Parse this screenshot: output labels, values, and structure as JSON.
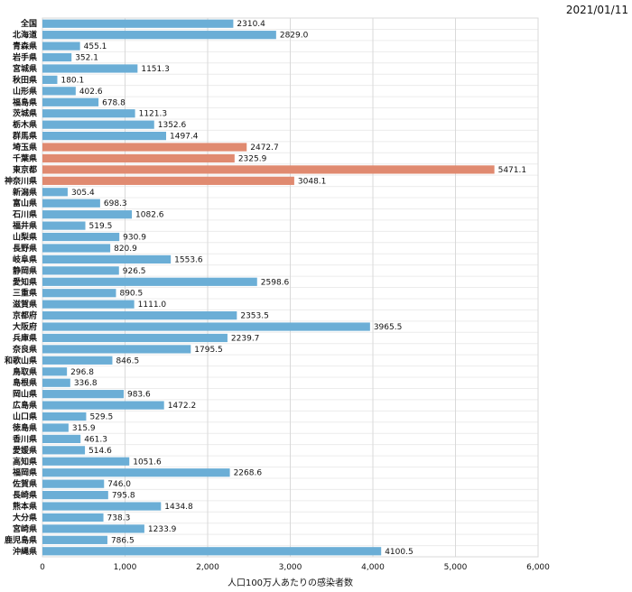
{
  "date": "2021/01/11",
  "chart_data": {
    "type": "bar",
    "orientation": "horizontal",
    "xlabel": "人口100万人あたりの感染者数",
    "xlim": [
      0,
      6000
    ],
    "xticks": [
      0,
      1000,
      2000,
      3000,
      4000,
      5000,
      6000
    ],
    "xtick_labels": [
      "0",
      "1,000",
      "2,000",
      "3,000",
      "4,000",
      "5,000",
      "6,000"
    ],
    "grid": true,
    "colors": {
      "default": "#6baed6",
      "highlight": "#e08a70"
    },
    "highlighted": [
      "埼玉県",
      "千葉県",
      "東京都",
      "神奈川県"
    ],
    "categories": [
      "全国",
      "北海道",
      "青森県",
      "岩手県",
      "宮城県",
      "秋田県",
      "山形県",
      "福島県",
      "茨城県",
      "栃木県",
      "群馬県",
      "埼玉県",
      "千葉県",
      "東京都",
      "神奈川県",
      "新潟県",
      "富山県",
      "石川県",
      "福井県",
      "山梨県",
      "長野県",
      "岐阜県",
      "静岡県",
      "愛知県",
      "三重県",
      "滋賀県",
      "京都府",
      "大阪府",
      "兵庫県",
      "奈良県",
      "和歌山県",
      "鳥取県",
      "島根県",
      "岡山県",
      "広島県",
      "山口県",
      "徳島県",
      "香川県",
      "愛媛県",
      "高知県",
      "福岡県",
      "佐賀県",
      "長崎県",
      "熊本県",
      "大分県",
      "宮崎県",
      "鹿児島県",
      "沖縄県"
    ],
    "values": [
      2310.4,
      2829.0,
      455.1,
      352.1,
      1151.3,
      180.1,
      402.6,
      678.8,
      1121.3,
      1352.6,
      1497.4,
      2472.7,
      2325.9,
      5471.1,
      3048.1,
      305.4,
      698.3,
      1082.6,
      519.5,
      930.9,
      820.9,
      1553.6,
      926.5,
      2598.6,
      890.5,
      1111.0,
      2353.5,
      3965.5,
      2239.7,
      1795.5,
      846.5,
      296.8,
      336.8,
      983.6,
      1472.2,
      529.5,
      315.9,
      461.3,
      514.6,
      1051.6,
      2268.6,
      746.0,
      795.8,
      1434.8,
      738.3,
      1233.9,
      786.5,
      4100.5
    ],
    "value_labels": [
      "2310.4",
      "2829.0",
      "455.1",
      "352.1",
      "1151.3",
      "180.1",
      "402.6",
      "678.8",
      "1121.3",
      "1352.6",
      "1497.4",
      "2472.7",
      "2325.9",
      "5471.1",
      "3048.1",
      "305.4",
      "698.3",
      "1082.6",
      "519.5",
      "930.9",
      "820.9",
      "1553.6",
      "926.5",
      "2598.6",
      "890.5",
      "1111.0",
      "2353.5",
      "3965.5",
      "2239.7",
      "1795.5",
      "846.5",
      "296.8",
      "336.8",
      "983.6",
      "1472.2",
      "529.5",
      "315.9",
      "461.3",
      "514.6",
      "1051.6",
      "2268.6",
      "746.0",
      "795.8",
      "1434.8",
      "738.3",
      "1233.9",
      "786.5",
      "4100.5"
    ]
  }
}
